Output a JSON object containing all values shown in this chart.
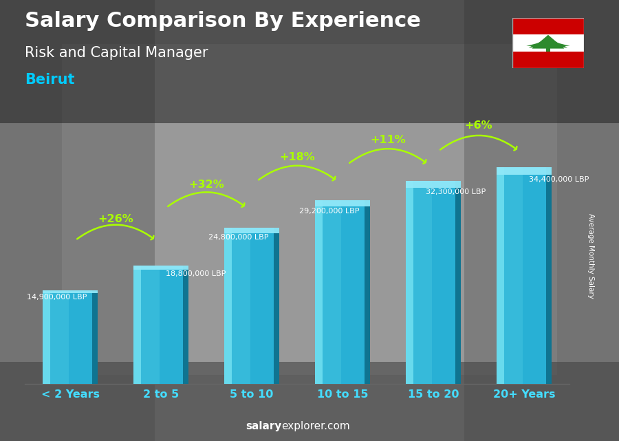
{
  "title_line1": "Salary Comparison By Experience",
  "title_line2": "Risk and Capital Manager",
  "city": "Beirut",
  "categories": [
    "< 2 Years",
    "2 to 5",
    "5 to 10",
    "10 to 15",
    "15 to 20",
    "20+ Years"
  ],
  "values": [
    14900000,
    18800000,
    24800000,
    29200000,
    32300000,
    34400000
  ],
  "labels": [
    "14,900,000 LBP",
    "18,800,000 LBP",
    "24,800,000 LBP",
    "29,200,000 LBP",
    "32,300,000 LBP",
    "34,400,000 LBP"
  ],
  "pct_changes": [
    "+26%",
    "+32%",
    "+18%",
    "+11%",
    "+6%"
  ],
  "bar_color_main": "#29a8d0",
  "bar_color_light": "#55ccee",
  "bar_color_dark": "#1580a0",
  "bar_color_top": "#80dfef",
  "bg_color": "#888888",
  "title_color": "#ffffff",
  "subtitle_color": "#ffffff",
  "city_color": "#00ccff",
  "label_color": "#ffffff",
  "pct_color": "#aaff00",
  "tick_color": "#44ddff",
  "arrow_color": "#aaff00",
  "watermark_bold": "salary",
  "watermark_normal": "explorer.com",
  "ylabel_text": "Average Monthly Salary",
  "ylim_max": 40000000,
  "bar_width": 0.6
}
